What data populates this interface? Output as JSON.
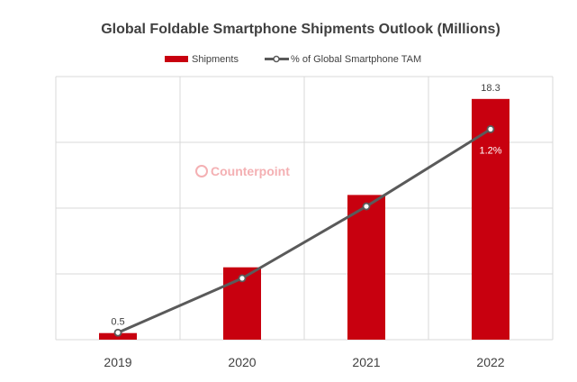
{
  "colors": {
    "bar": "#c8000f",
    "line": "#5a5a5a",
    "marker_fill": "#ffffff",
    "grid": "#d9d9d9",
    "watermark": "#f4b0b3"
  },
  "watermark": {
    "text": "Counterpoint",
    "icon": "counterpoint-logo-icon"
  },
  "chart_data": {
    "type": "bar+line",
    "title": "Global Foldable Smartphone Shipments Outlook (Millions)",
    "categories": [
      "2019",
      "2020",
      "2021",
      "2022"
    ],
    "series": [
      {
        "name": "Shipments",
        "type": "bar",
        "axis": "left",
        "values": [
          0.5,
          5.5,
          11.0,
          18.3
        ],
        "labels": [
          "0.5",
          "",
          "",
          "18.3"
        ]
      },
      {
        "name": "% of Global Smartphone TAM",
        "type": "line",
        "axis": "right",
        "values": [
          0.04,
          0.35,
          0.76,
          1.2
        ],
        "labels": [
          "",
          "",
          "",
          "1.2%"
        ]
      }
    ],
    "ylim": [
      0,
      20
    ],
    "y2lim": [
      0,
      1.5
    ],
    "grid": true,
    "legend": "top-center",
    "xlabel": "",
    "ylabel": ""
  }
}
